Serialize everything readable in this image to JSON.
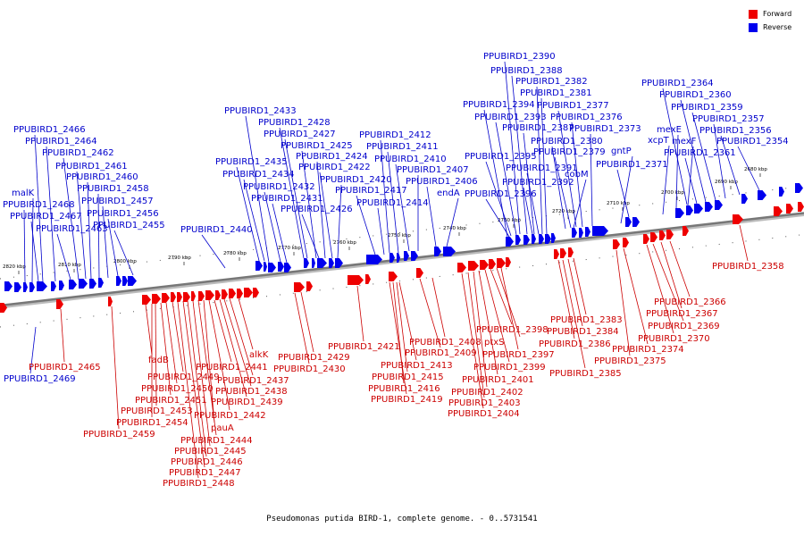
{
  "legend": [
    {
      "label": "Forward",
      "color": "#ee0000"
    },
    {
      "label": "Reverse",
      "color": "#0000ee"
    }
  ],
  "caption": "Pseudomonas putida BIRD-1, complete genome. - 0..5731541",
  "colors": {
    "forward": "#ee0000",
    "reverse": "#0000ee",
    "backbone": "#777777",
    "forward_label": "#cc0000",
    "reverse_label": "#0000cc"
  },
  "ticks": [
    {
      "kbp": 2820,
      "label": "2820 kbp"
    },
    {
      "kbp": 2810,
      "label": "2810 kbp"
    },
    {
      "kbp": 2800,
      "label": "2800 kbp"
    },
    {
      "kbp": 2790,
      "label": "2790 kbp"
    },
    {
      "kbp": 2780,
      "label": "2780 kbp"
    },
    {
      "kbp": 2770,
      "label": "2770 kbp"
    },
    {
      "kbp": 2760,
      "label": "2760 kbp"
    },
    {
      "kbp": 2750,
      "label": "2750 kbp"
    },
    {
      "kbp": 2740,
      "label": "2740 kbp"
    },
    {
      "kbp": 2730,
      "label": "2730 kbp"
    },
    {
      "kbp": 2720,
      "label": "2720 kbp"
    },
    {
      "kbp": 2710,
      "label": "2710 kbp"
    },
    {
      "kbp": 2700,
      "label": "2700 kbp"
    },
    {
      "kbp": 2690,
      "label": "2690 kbp"
    },
    {
      "kbp": 2680,
      "label": "2680 kbp"
    }
  ],
  "genes_reverse": [
    {
      "name": "PPUBIRD1_2469"
    },
    {
      "name": "PPUBIRD1_2468"
    },
    {
      "name": "malK"
    },
    {
      "name": "PPUBIRD1_2467"
    },
    {
      "name": "PPUBIRD1_2466"
    },
    {
      "name": "PPUBIRD1_2464"
    },
    {
      "name": "PPUBIRD1_2463"
    },
    {
      "name": "PPUBIRD1_2462"
    },
    {
      "name": "PPUBIRD1_2461"
    },
    {
      "name": "PPUBIRD1_2460"
    },
    {
      "name": "PPUBIRD1_2458"
    },
    {
      "name": "PPUBIRD1_2457"
    },
    {
      "name": "PPUBIRD1_2456"
    },
    {
      "name": "PPUBIRD1_2455"
    },
    {
      "name": "PPUBIRD1_2440"
    },
    {
      "name": "PPUBIRD1_2435"
    },
    {
      "name": "PPUBIRD1_2434"
    },
    {
      "name": "PPUBIRD1_2433"
    },
    {
      "name": "PPUBIRD1_2432"
    },
    {
      "name": "PPUBIRD1_2431"
    },
    {
      "name": "PPUBIRD1_2428"
    },
    {
      "name": "PPUBIRD1_2427"
    },
    {
      "name": "PPUBIRD1_2426"
    },
    {
      "name": "PPUBIRD1_2425"
    },
    {
      "name": "PPUBIRD1_2424"
    },
    {
      "name": "PPUBIRD1_2422"
    },
    {
      "name": "PPUBIRD1_2420"
    },
    {
      "name": "PPUBIRD1_2417"
    },
    {
      "name": "PPUBIRD1_2414"
    },
    {
      "name": "PPUBIRD1_2412"
    },
    {
      "name": "PPUBIRD1_2411"
    },
    {
      "name": "PPUBIRD1_2410"
    },
    {
      "name": "PPUBIRD1_2407"
    },
    {
      "name": "PPUBIRD1_2406"
    },
    {
      "name": "endA"
    },
    {
      "name": "PPUBIRD1_2396"
    },
    {
      "name": "PPUBIRD1_2395"
    },
    {
      "name": "PPUBIRD1_2394"
    },
    {
      "name": "PPUBIRD1_2393"
    },
    {
      "name": "PPUBIRD1_2392"
    },
    {
      "name": "PPUBIRD1_2391"
    },
    {
      "name": "PPUBIRD1_2390"
    },
    {
      "name": "PPUBIRD1_2388"
    },
    {
      "name": "PPUBIRD1_2387"
    },
    {
      "name": "PPUBIRD1_2382"
    },
    {
      "name": "PPUBIRD1_2381"
    },
    {
      "name": "PPUBIRD1_2380"
    },
    {
      "name": "PPUBIRD1_2379"
    },
    {
      "name": "cobM"
    },
    {
      "name": "PPUBIRD1_2377"
    },
    {
      "name": "PPUBIRD1_2376"
    },
    {
      "name": "PPUBIRD1_2373"
    },
    {
      "name": "gntP"
    },
    {
      "name": "PPUBIRD1_2371"
    },
    {
      "name": "xcpT"
    },
    {
      "name": "mexE"
    },
    {
      "name": "mexF"
    },
    {
      "name": "PPUBIRD1_2364"
    },
    {
      "name": "PPUBIRD1_2361"
    },
    {
      "name": "PPUBIRD1_2360"
    },
    {
      "name": "PPUBIRD1_2359"
    },
    {
      "name": "PPUBIRD1_2357"
    },
    {
      "name": "PPUBIRD1_2356"
    },
    {
      "name": "PPUBIRD1_2354"
    }
  ],
  "genes_forward": [
    {
      "name": "PPUBIRD1_2465"
    },
    {
      "name": "PPUBIRD1_2459"
    },
    {
      "name": "fadB"
    },
    {
      "name": "PPUBIRD1_2454"
    },
    {
      "name": "PPUBIRD1_2453"
    },
    {
      "name": "PPUBIRD1_2451"
    },
    {
      "name": "PPUBIRD1_2450"
    },
    {
      "name": "PPUBIRD1_2449"
    },
    {
      "name": "PPUBIRD1_2448"
    },
    {
      "name": "PPUBIRD1_2447"
    },
    {
      "name": "PPUBIRD1_2446"
    },
    {
      "name": "PPUBIRD1_2445"
    },
    {
      "name": "PPUBIRD1_2444"
    },
    {
      "name": "pauA"
    },
    {
      "name": "PPUBIRD1_2442"
    },
    {
      "name": "PPUBIRD1_2441"
    },
    {
      "name": "PPUBIRD1_2439"
    },
    {
      "name": "PPUBIRD1_2438"
    },
    {
      "name": "PPUBIRD1_2437"
    },
    {
      "name": "alkK"
    },
    {
      "name": "PPUBIRD1_2430"
    },
    {
      "name": "PPUBIRD1_2429"
    },
    {
      "name": "PPUBIRD1_2421"
    },
    {
      "name": "PPUBIRD1_2419"
    },
    {
      "name": "PPUBIRD1_2416"
    },
    {
      "name": "PPUBIRD1_2415"
    },
    {
      "name": "PPUBIRD1_2413"
    },
    {
      "name": "PPUBIRD1_2409"
    },
    {
      "name": "PPUBIRD1_2408"
    },
    {
      "name": "PPUBIRD1_2404"
    },
    {
      "name": "PPUBIRD1_2403"
    },
    {
      "name": "PPUBIRD1_2402"
    },
    {
      "name": "PPUBIRD1_2401"
    },
    {
      "name": "PPUBIRD1_2399"
    },
    {
      "name": "PPUBIRD1_2398"
    },
    {
      "name": "ptxS"
    },
    {
      "name": "PPUBIRD1_2397"
    },
    {
      "name": "PPUBIRD1_2386"
    },
    {
      "name": "PPUBIRD1_2385"
    },
    {
      "name": "PPUBIRD1_2384"
    },
    {
      "name": "PPUBIRD1_2383"
    },
    {
      "name": "PPUBIRD1_2375"
    },
    {
      "name": "PPUBIRD1_2374"
    },
    {
      "name": "PPUBIRD1_2370"
    },
    {
      "name": "PPUBIRD1_2369"
    },
    {
      "name": "PPUBIRD1_2367"
    },
    {
      "name": "PPUBIRD1_2366"
    },
    {
      "name": "PPUBIRD1_2358"
    }
  ]
}
